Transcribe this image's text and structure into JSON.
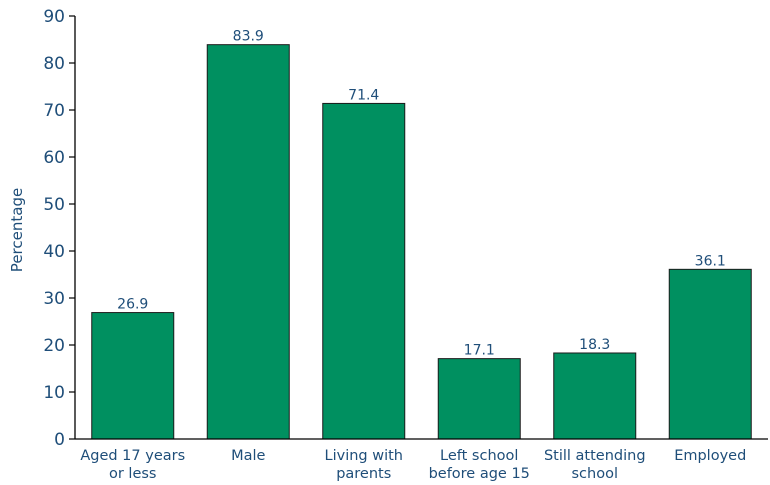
{
  "chart_data": {
    "type": "bar",
    "title": "",
    "xlabel": "",
    "ylabel": "Percentage",
    "ylim": [
      0,
      90
    ],
    "yticks": [
      0,
      10,
      20,
      30,
      40,
      50,
      60,
      70,
      80,
      90
    ],
    "categories": [
      [
        "Aged 17 years",
        "or less"
      ],
      [
        "Male"
      ],
      [
        "Living with",
        "parents"
      ],
      [
        "Left school",
        "before age 15"
      ],
      [
        "Still attending",
        "school"
      ],
      [
        "Employed"
      ]
    ],
    "values": [
      26.9,
      83.9,
      71.4,
      17.1,
      18.3,
      36.1
    ],
    "data_labels": [
      "26.9",
      "83.9",
      "71.4",
      "17.1",
      "18.3",
      "36.1"
    ],
    "grid": false,
    "colors": {
      "bar": "#009060",
      "bar_border": "#1a1a1a",
      "text": "#1f4e79",
      "axis": "#000000"
    }
  }
}
